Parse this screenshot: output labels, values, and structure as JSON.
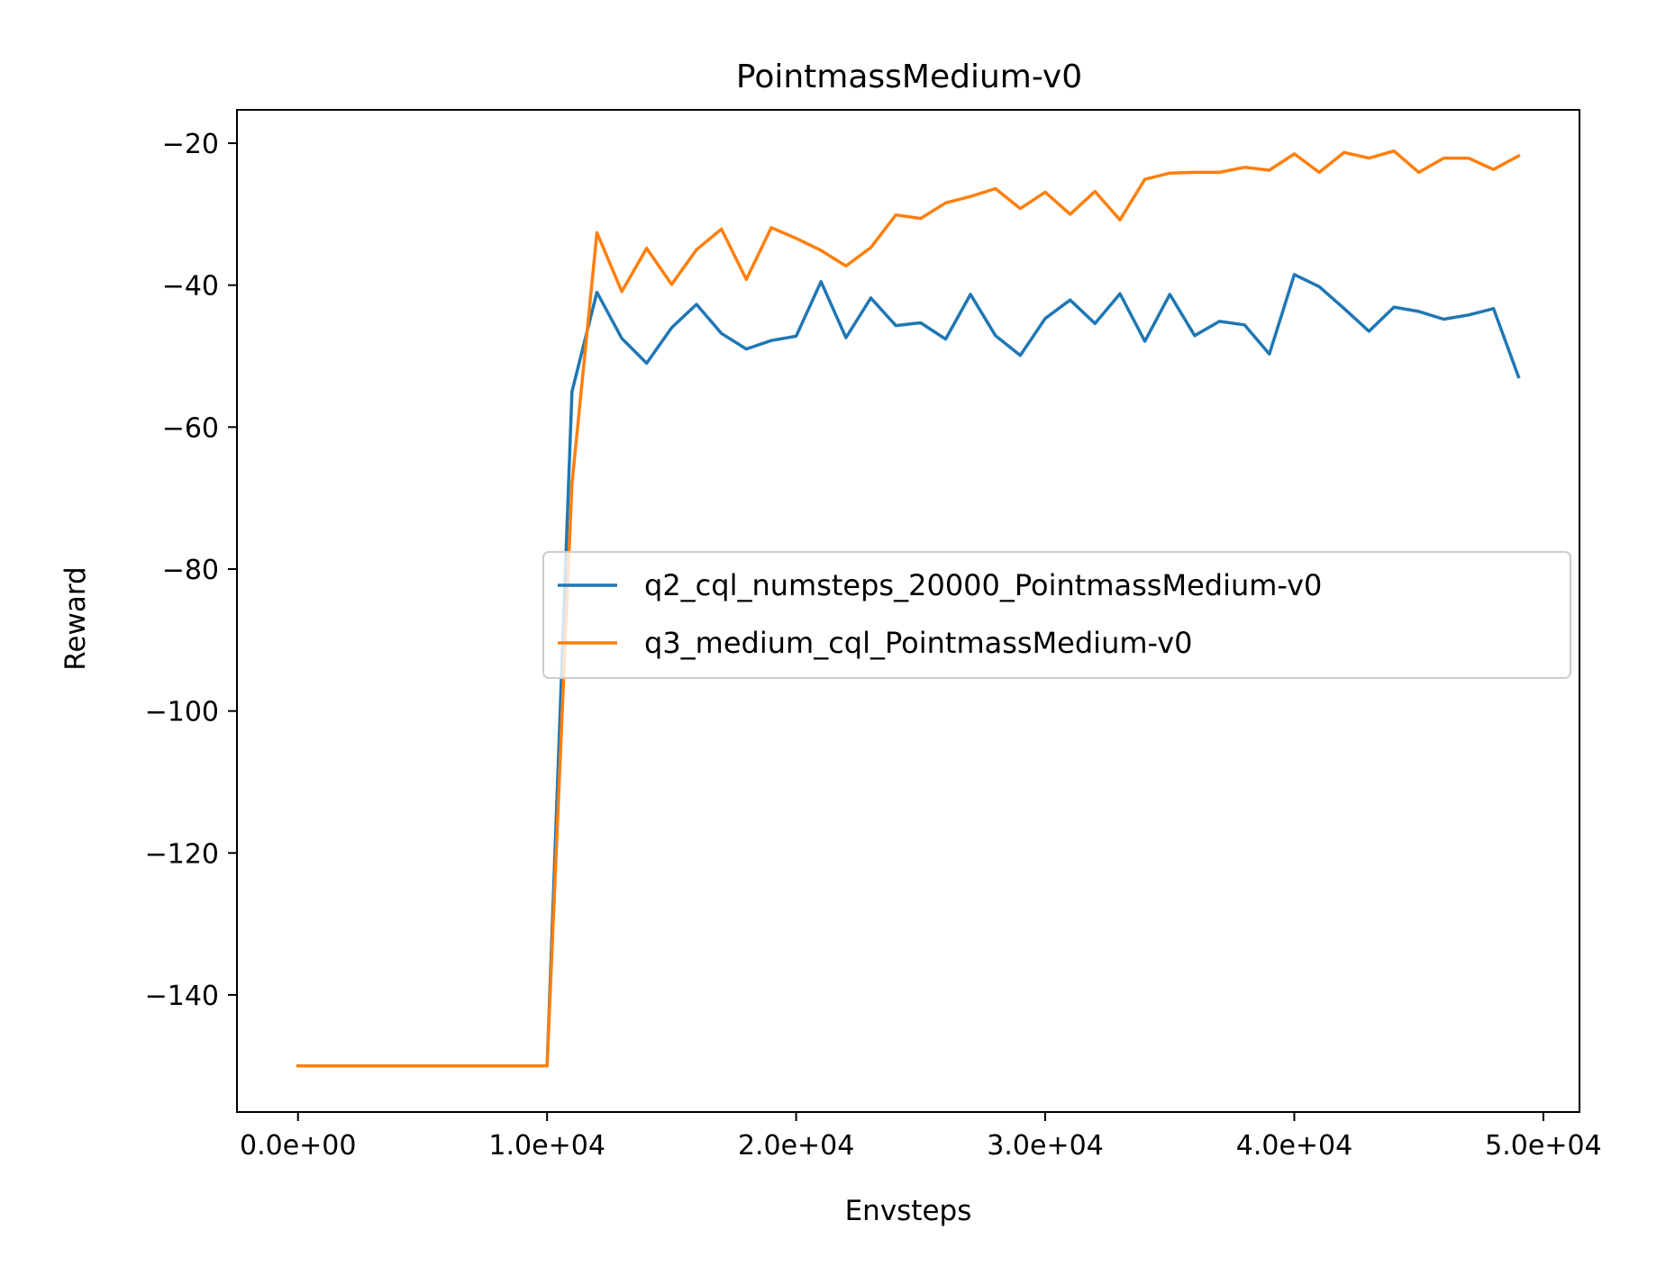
{
  "chart_data": {
    "type": "line",
    "title": "PointmassMedium-v0",
    "xlabel": "Envsteps",
    "ylabel": "Reward",
    "xlim": [
      -2450,
      51450
    ],
    "ylim": [
      -156.5,
      -15.3
    ],
    "xticks": [
      0,
      10000,
      20000,
      30000,
      40000,
      50000
    ],
    "xtick_labels": [
      "0.0e+00",
      "1.0e+04",
      "2.0e+04",
      "3.0e+04",
      "4.0e+04",
      "5.0e+04"
    ],
    "yticks": [
      -20,
      -40,
      -60,
      -80,
      -100,
      -120,
      -140
    ],
    "ytick_labels": [
      "−20",
      "−40",
      "−60",
      "−80",
      "−100",
      "−120",
      "−140"
    ],
    "grid": false,
    "legend_position": "center-right",
    "x": [
      0,
      1000,
      2000,
      3000,
      4000,
      5000,
      6000,
      7000,
      8000,
      9000,
      10000,
      11000,
      12000,
      13000,
      14000,
      15000,
      16000,
      17000,
      18000,
      19000,
      20000,
      21000,
      22000,
      23000,
      24000,
      25000,
      26000,
      27000,
      28000,
      29000,
      30000,
      31000,
      32000,
      33000,
      34000,
      35000,
      36000,
      37000,
      38000,
      39000,
      40000,
      41000,
      42000,
      43000,
      44000,
      45000,
      46000,
      47000,
      48000,
      49000
    ],
    "series": [
      {
        "name": "q2_cql_numsteps_20000_PointmassMedium-v0",
        "color": "#1f77b4",
        "values": [
          -150,
          -150,
          -150,
          -150,
          -150,
          -150,
          -150,
          -150,
          -150,
          -150,
          -150,
          -55,
          -41,
          -47.5,
          -51,
          -46,
          -42.7,
          -46.8,
          -49,
          -47.8,
          -47.2,
          -39.5,
          -47.4,
          -41.8,
          -45.7,
          -45.3,
          -47.6,
          -41.3,
          -47.1,
          -49.9,
          -44.7,
          -42.1,
          -45.4,
          -41.2,
          -47.9,
          -41.3,
          -47.1,
          -45.1,
          -45.6,
          -49.7,
          -38.5,
          -40.2,
          -43.3,
          -46.5,
          -43.1,
          -43.7,
          -44.8,
          -44.2,
          -43.3,
          -52.9
        ]
      },
      {
        "name": "q3_medium_cql_PointmassMedium-v0",
        "color": "#ff7f0e",
        "values": [
          -150,
          -150,
          -150,
          -150,
          -150,
          -150,
          -150,
          -150,
          -150,
          -150,
          -150,
          -68,
          -32.6,
          -40.9,
          -34.8,
          -39.9,
          -35,
          -32.1,
          -39.2,
          -31.9,
          -33.4,
          -35.1,
          -37.3,
          -34.7,
          -30.1,
          -30.6,
          -28.4,
          -27.5,
          -26.4,
          -29.2,
          -26.9,
          -30,
          -26.8,
          -30.8,
          -25.1,
          -24.2,
          -24.1,
          -24.1,
          -23.4,
          -23.8,
          -21.5,
          -24.1,
          -21.3,
          -22.1,
          -21.1,
          -24.1,
          -22.1,
          -22.1,
          -23.7,
          -21.8
        ]
      }
    ]
  }
}
